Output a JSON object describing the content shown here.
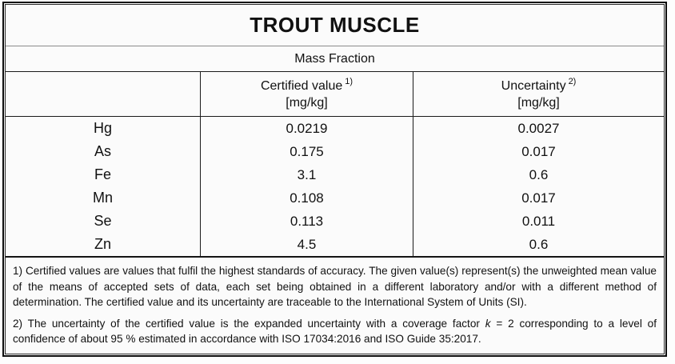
{
  "title": "TROUT MUSCLE",
  "subtitle": "Mass Fraction",
  "columns": {
    "certified": {
      "label": "Certified value",
      "sup": "1)",
      "unit": "[mg/kg]"
    },
    "uncertainty": {
      "label": "Uncertainty",
      "sup": "2)",
      "unit": "[mg/kg]"
    }
  },
  "rows": [
    {
      "element": "Hg",
      "certified": "0.0219",
      "uncertainty": "0.0027"
    },
    {
      "element": "As",
      "certified": "0.175",
      "uncertainty": "0.017"
    },
    {
      "element": "Fe",
      "certified": "3.1",
      "uncertainty": "0.6"
    },
    {
      "element": "Mn",
      "certified": "0.108",
      "uncertainty": "0.017"
    },
    {
      "element": "Se",
      "certified": "0.113",
      "uncertainty": "0.011"
    },
    {
      "element": "Zn",
      "certified": "4.5",
      "uncertainty": "0.6"
    }
  ],
  "footnotes": {
    "note1": "1) Certified values are values that fulfil the highest standards of accuracy. The given value(s) represent(s) the unweighted mean value of the means of accepted sets of data, each set being obtained in a different laboratory and/or with a different method of determination. The certified value and its uncertainty are traceable to the International System of Units (SI).",
    "note2_pre": "2) The uncertainty of the certified value is the expanded uncertainty with a coverage factor ",
    "note2_k": "k",
    "note2_post": " = 2 corresponding to a level of confidence of about 95 % estimated in accordance with ISO 17034:2016 and ISO Guide 35:2017."
  },
  "colors": {
    "outer_border": "#0d0d0d",
    "grid_line": "#1a1a1a",
    "title_divider": "#8b8b8b",
    "background": "#fbfbfb",
    "text": "#111111"
  }
}
